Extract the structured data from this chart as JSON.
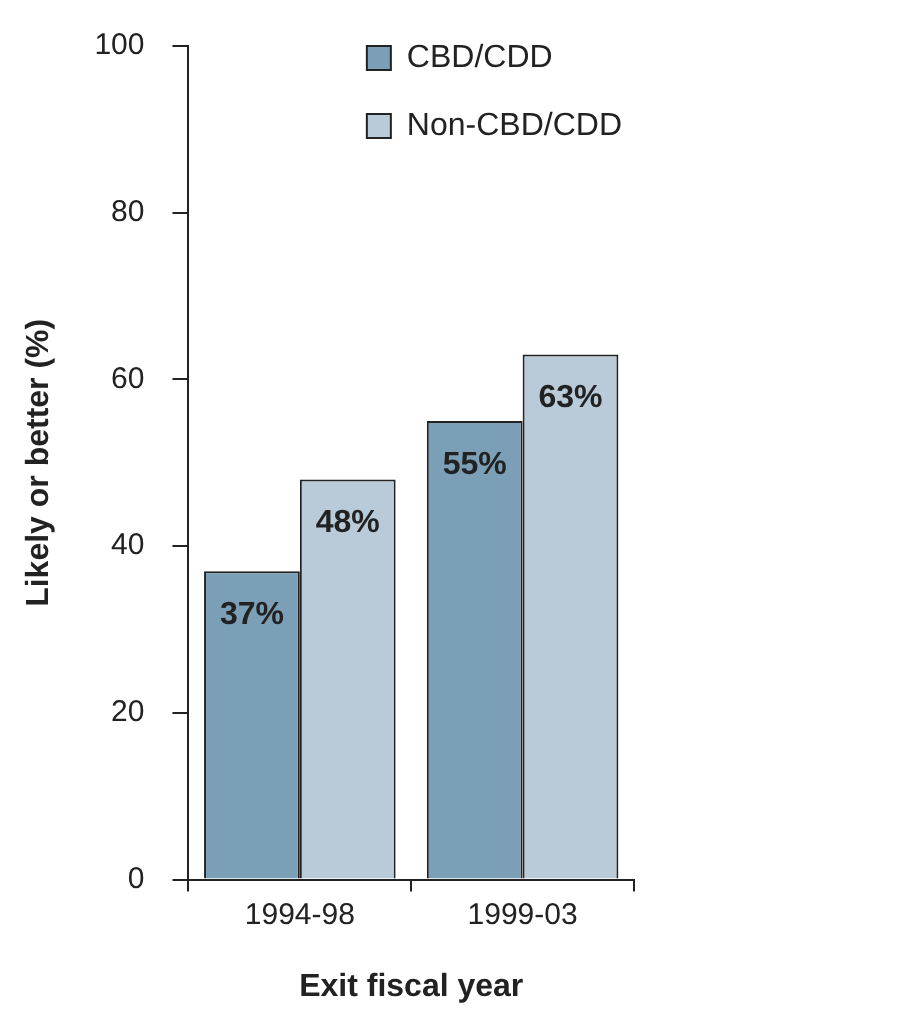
{
  "chart_data": {
    "type": "bar",
    "xlabel": "Exit fiscal year",
    "ylabel": "Likely or better (%)",
    "categories": [
      "1994-98",
      "1999-03"
    ],
    "series": [
      {
        "name": "CBD/CDD",
        "color": "#7b9fb7",
        "values": [
          37,
          55
        ],
        "value_labels": [
          "37%",
          "55%"
        ]
      },
      {
        "name": "Non-CBD/CDD",
        "color": "#b9cbd9",
        "values": [
          48,
          63
        ],
        "value_labels": [
          "48%",
          "63%"
        ]
      }
    ],
    "ylim": [
      0,
      100
    ],
    "yticks": [
      0,
      20,
      40,
      60,
      80,
      100
    ],
    "grid": false,
    "legend": "top right"
  }
}
